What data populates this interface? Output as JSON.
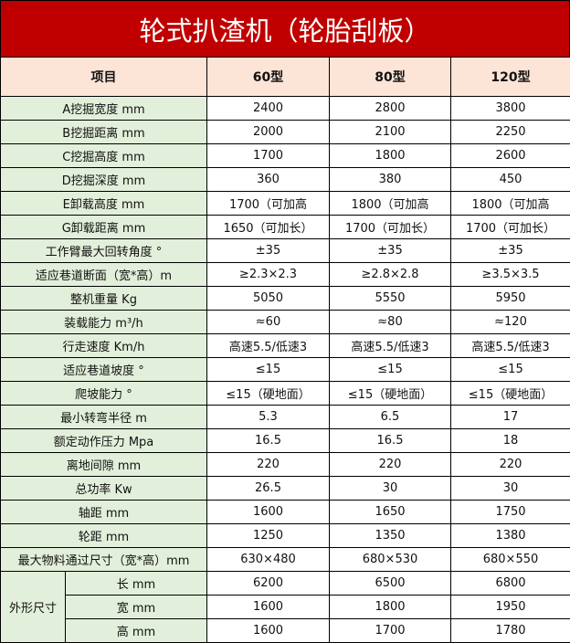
{
  "title": "轮式扒渣机（轮胎刮板）",
  "header": [
    "项目",
    "60型",
    "80型",
    "120型"
  ],
  "rows": [
    {
      "label": "A挖掘宽度 mm",
      "values": [
        "2400",
        "2800",
        "3800"
      ]
    },
    {
      "label": "B挖掘距离 mm",
      "values": [
        "2000",
        "2100",
        "2250"
      ]
    },
    {
      "label": "C挖掘高度 mm",
      "values": [
        "1700",
        "1800",
        "2600"
      ]
    },
    {
      "label": "D挖掘深度 mm",
      "values": [
        "360",
        "380",
        "450"
      ]
    },
    {
      "label": "E卸载高度 mm",
      "values": [
        "1700（可加高",
        "1800（可加高",
        "1800（可加高"
      ]
    },
    {
      "label": "G卸载距离 mm",
      "values": [
        "1650（可加长）",
        "1700（可加长）",
        "1700（可加长）"
      ]
    },
    {
      "label": "工作臂最大回转角度 °",
      "values": [
        "±35",
        "±35",
        "±35"
      ]
    },
    {
      "label": "适应巷道断面（宽*高）m",
      "values": [
        "≥2.3×2.3",
        "≥2.8×2.8",
        "≥3.5×3.5"
      ]
    },
    {
      "label": "整机重量 Kg",
      "values": [
        "5050",
        "5550",
        "5950"
      ]
    },
    {
      "label": "装载能力 m³/h",
      "values": [
        "≈60",
        "≈80",
        "≈120"
      ]
    },
    {
      "label": "行走速度 Km/h",
      "values": [
        "高速5.5/低速3",
        "高速5.5/低速3",
        "高速5.5/低速3"
      ]
    },
    {
      "label": "适应巷道坡度 °",
      "values": [
        "≤15",
        "≤15",
        "≤15"
      ]
    },
    {
      "label": "爬坡能力 °",
      "values": [
        "≤15（硬地面）",
        "≤15（硬地面）",
        "≤15（硬地面）"
      ]
    },
    {
      "label": "最小转弯半径 m",
      "values": [
        "5.3",
        "6.5",
        "17"
      ]
    },
    {
      "label": "额定动作压力 Mpa",
      "values": [
        "16.5",
        "16.5",
        "18"
      ]
    },
    {
      "label": "离地间隙 mm",
      "values": [
        "220",
        "220",
        "220"
      ]
    },
    {
      "label": "总功率 Kw",
      "values": [
        "26.5",
        "30",
        "30"
      ]
    },
    {
      "label": "轴距 mm",
      "values": [
        "1600",
        "1650",
        "1750"
      ]
    },
    {
      "label": "轮距 mm",
      "values": [
        "1250",
        "1350",
        "1380"
      ]
    },
    {
      "label": "最大物料通过尺寸（宽*高）mm",
      "values": [
        "630×480",
        "680×530",
        "680×550"
      ]
    }
  ],
  "group": {
    "label": "外形尺寸",
    "rows": [
      {
        "label": "长 mm",
        "values": [
          "6200",
          "6500",
          "6800"
        ]
      },
      {
        "label": "宽 mm",
        "values": [
          "1600",
          "1800",
          "1950"
        ]
      },
      {
        "label": "高 mm",
        "values": [
          "1600",
          "1700",
          "1780"
        ]
      }
    ]
  }
}
